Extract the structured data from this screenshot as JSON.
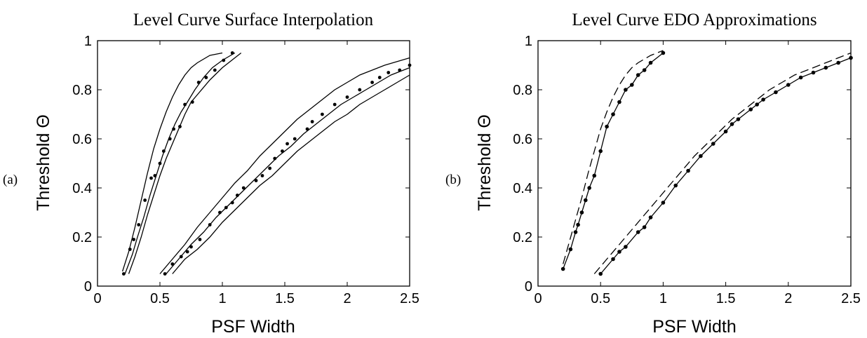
{
  "chart_data": [
    {
      "panel_label": "(a)",
      "type": "line",
      "title": "Level Curve Surface Interpolation",
      "xlabel": "PSF Width",
      "ylabel": "Threshold Θ",
      "xlim": [
        0,
        2.5
      ],
      "ylim": [
        0,
        1
      ],
      "xticks": [
        "0",
        "0.5",
        "1",
        "1.5",
        "2",
        "2.5"
      ],
      "yticks": [
        "0",
        "0.2",
        "0.4",
        "0.6",
        "0.8",
        "1"
      ],
      "grid": false,
      "series": [
        {
          "style": "solid",
          "x": [
            0.2,
            0.25,
            0.3,
            0.35,
            0.4,
            0.45,
            0.5,
            0.55,
            0.6,
            0.65,
            0.7,
            0.75,
            0.8,
            0.9,
            1.0
          ],
          "y": [
            0.06,
            0.14,
            0.24,
            0.35,
            0.46,
            0.56,
            0.64,
            0.71,
            0.77,
            0.82,
            0.86,
            0.89,
            0.91,
            0.94,
            0.95
          ]
        },
        {
          "style": "solid",
          "x": [
            0.22,
            0.28,
            0.32,
            0.37,
            0.42,
            0.47,
            0.52,
            0.57,
            0.62,
            0.67,
            0.72,
            0.78,
            0.85,
            0.92,
            1.0,
            1.1
          ],
          "y": [
            0.05,
            0.13,
            0.2,
            0.28,
            0.37,
            0.45,
            0.53,
            0.6,
            0.66,
            0.71,
            0.75,
            0.8,
            0.85,
            0.89,
            0.92,
            0.95
          ]
        },
        {
          "style": "solid",
          "x": [
            0.25,
            0.3,
            0.35,
            0.4,
            0.45,
            0.5,
            0.55,
            0.6,
            0.65,
            0.7,
            0.75,
            0.8,
            0.9,
            1.0,
            1.15
          ],
          "y": [
            0.05,
            0.12,
            0.2,
            0.29,
            0.37,
            0.45,
            0.52,
            0.58,
            0.64,
            0.7,
            0.75,
            0.78,
            0.84,
            0.89,
            0.95
          ]
        },
        {
          "style": "markers",
          "x": [
            0.21,
            0.26,
            0.29,
            0.33,
            0.38,
            0.43,
            0.46,
            0.5,
            0.53,
            0.58,
            0.61,
            0.66,
            0.7,
            0.76,
            0.81,
            0.87,
            0.94,
            1.01,
            1.08
          ],
          "y": [
            0.05,
            0.15,
            0.19,
            0.25,
            0.35,
            0.44,
            0.45,
            0.5,
            0.55,
            0.6,
            0.64,
            0.65,
            0.74,
            0.75,
            0.83,
            0.85,
            0.88,
            0.92,
            0.95
          ]
        },
        {
          "style": "solid",
          "x": [
            0.5,
            0.6,
            0.7,
            0.8,
            0.9,
            1.0,
            1.1,
            1.2,
            1.3,
            1.4,
            1.5,
            1.6,
            1.7,
            1.8,
            1.9,
            2.0,
            2.1,
            2.2,
            2.3,
            2.4,
            2.5
          ],
          "y": [
            0.05,
            0.11,
            0.17,
            0.24,
            0.3,
            0.36,
            0.42,
            0.47,
            0.53,
            0.58,
            0.63,
            0.68,
            0.72,
            0.76,
            0.8,
            0.83,
            0.86,
            0.88,
            0.9,
            0.915,
            0.93
          ]
        },
        {
          "style": "solid",
          "x": [
            0.55,
            0.65,
            0.75,
            0.85,
            0.95,
            1.05,
            1.15,
            1.25,
            1.35,
            1.45,
            1.55,
            1.65,
            1.75,
            1.85,
            1.95,
            2.05,
            2.15,
            2.25,
            2.35,
            2.45,
            2.5
          ],
          "y": [
            0.05,
            0.11,
            0.17,
            0.22,
            0.28,
            0.33,
            0.38,
            0.43,
            0.48,
            0.53,
            0.57,
            0.62,
            0.66,
            0.7,
            0.74,
            0.77,
            0.8,
            0.83,
            0.86,
            0.88,
            0.89
          ]
        },
        {
          "style": "solid",
          "x": [
            0.6,
            0.7,
            0.8,
            0.9,
            1.0,
            1.1,
            1.2,
            1.3,
            1.4,
            1.5,
            1.6,
            1.7,
            1.8,
            1.9,
            2.0,
            2.1,
            2.2,
            2.3,
            2.4,
            2.5
          ],
          "y": [
            0.05,
            0.11,
            0.15,
            0.2,
            0.26,
            0.31,
            0.36,
            0.41,
            0.45,
            0.5,
            0.55,
            0.59,
            0.63,
            0.67,
            0.7,
            0.74,
            0.77,
            0.8,
            0.83,
            0.86
          ]
        },
        {
          "style": "markers",
          "x": [
            0.54,
            0.6,
            0.67,
            0.72,
            0.75,
            0.82,
            0.9,
            0.98,
            1.03,
            1.08,
            1.12,
            1.17,
            1.27,
            1.32,
            1.38,
            1.42,
            1.48,
            1.52,
            1.58,
            1.68,
            1.72,
            1.8,
            1.9,
            2.0,
            2.1,
            2.2,
            2.26,
            2.33,
            2.42,
            2.5
          ],
          "y": [
            0.05,
            0.09,
            0.12,
            0.14,
            0.16,
            0.19,
            0.25,
            0.3,
            0.32,
            0.34,
            0.37,
            0.4,
            0.43,
            0.45,
            0.48,
            0.52,
            0.55,
            0.58,
            0.6,
            0.64,
            0.67,
            0.7,
            0.74,
            0.77,
            0.8,
            0.83,
            0.85,
            0.87,
            0.88,
            0.9
          ]
        }
      ]
    },
    {
      "panel_label": "(b)",
      "type": "line",
      "title": "Level Curve EDO Approximations",
      "xlabel": "PSF Width",
      "ylabel": "Threshold Θ",
      "xlim": [
        0,
        2.5
      ],
      "ylim": [
        0,
        1
      ],
      "xticks": [
        "0",
        "0.5",
        "1",
        "1.5",
        "2",
        "2.5"
      ],
      "yticks": [
        "0",
        "0.2",
        "0.4",
        "0.6",
        "0.8",
        "1"
      ],
      "grid": false,
      "series": [
        {
          "style": "solid-markers",
          "x": [
            0.2,
            0.26,
            0.3,
            0.32,
            0.35,
            0.38,
            0.41,
            0.45,
            0.5,
            0.55,
            0.6,
            0.65,
            0.7,
            0.75,
            0.8,
            0.85,
            0.9,
            1.0
          ],
          "y": [
            0.07,
            0.15,
            0.22,
            0.25,
            0.3,
            0.35,
            0.4,
            0.45,
            0.55,
            0.65,
            0.7,
            0.75,
            0.8,
            0.82,
            0.86,
            0.88,
            0.91,
            0.95
          ]
        },
        {
          "style": "dashed",
          "x": [
            0.2,
            0.25,
            0.3,
            0.35,
            0.4,
            0.45,
            0.5,
            0.55,
            0.6,
            0.65,
            0.7,
            0.75,
            0.8,
            0.9,
            1.0
          ],
          "y": [
            0.09,
            0.18,
            0.27,
            0.36,
            0.46,
            0.55,
            0.64,
            0.71,
            0.77,
            0.82,
            0.86,
            0.89,
            0.91,
            0.94,
            0.96
          ]
        },
        {
          "style": "solid-markers",
          "x": [
            0.5,
            0.6,
            0.65,
            0.7,
            0.8,
            0.85,
            0.9,
            1.0,
            1.1,
            1.2,
            1.3,
            1.4,
            1.5,
            1.55,
            1.6,
            1.7,
            1.75,
            1.8,
            1.9,
            2.0,
            2.1,
            2.2,
            2.3,
            2.4,
            2.5
          ],
          "y": [
            0.05,
            0.11,
            0.14,
            0.16,
            0.22,
            0.24,
            0.28,
            0.34,
            0.41,
            0.47,
            0.53,
            0.58,
            0.63,
            0.66,
            0.68,
            0.72,
            0.74,
            0.76,
            0.79,
            0.82,
            0.85,
            0.87,
            0.89,
            0.91,
            0.93
          ]
        },
        {
          "style": "dashed",
          "x": [
            0.45,
            0.55,
            0.65,
            0.75,
            0.85,
            0.95,
            1.05,
            1.15,
            1.25,
            1.35,
            1.45,
            1.55,
            1.65,
            1.75,
            1.85,
            1.95,
            2.05,
            2.15,
            2.25,
            2.35,
            2.5
          ],
          "y": [
            0.05,
            0.11,
            0.17,
            0.23,
            0.29,
            0.35,
            0.41,
            0.47,
            0.53,
            0.58,
            0.63,
            0.68,
            0.72,
            0.76,
            0.8,
            0.83,
            0.86,
            0.88,
            0.9,
            0.92,
            0.95
          ]
        }
      ]
    }
  ]
}
